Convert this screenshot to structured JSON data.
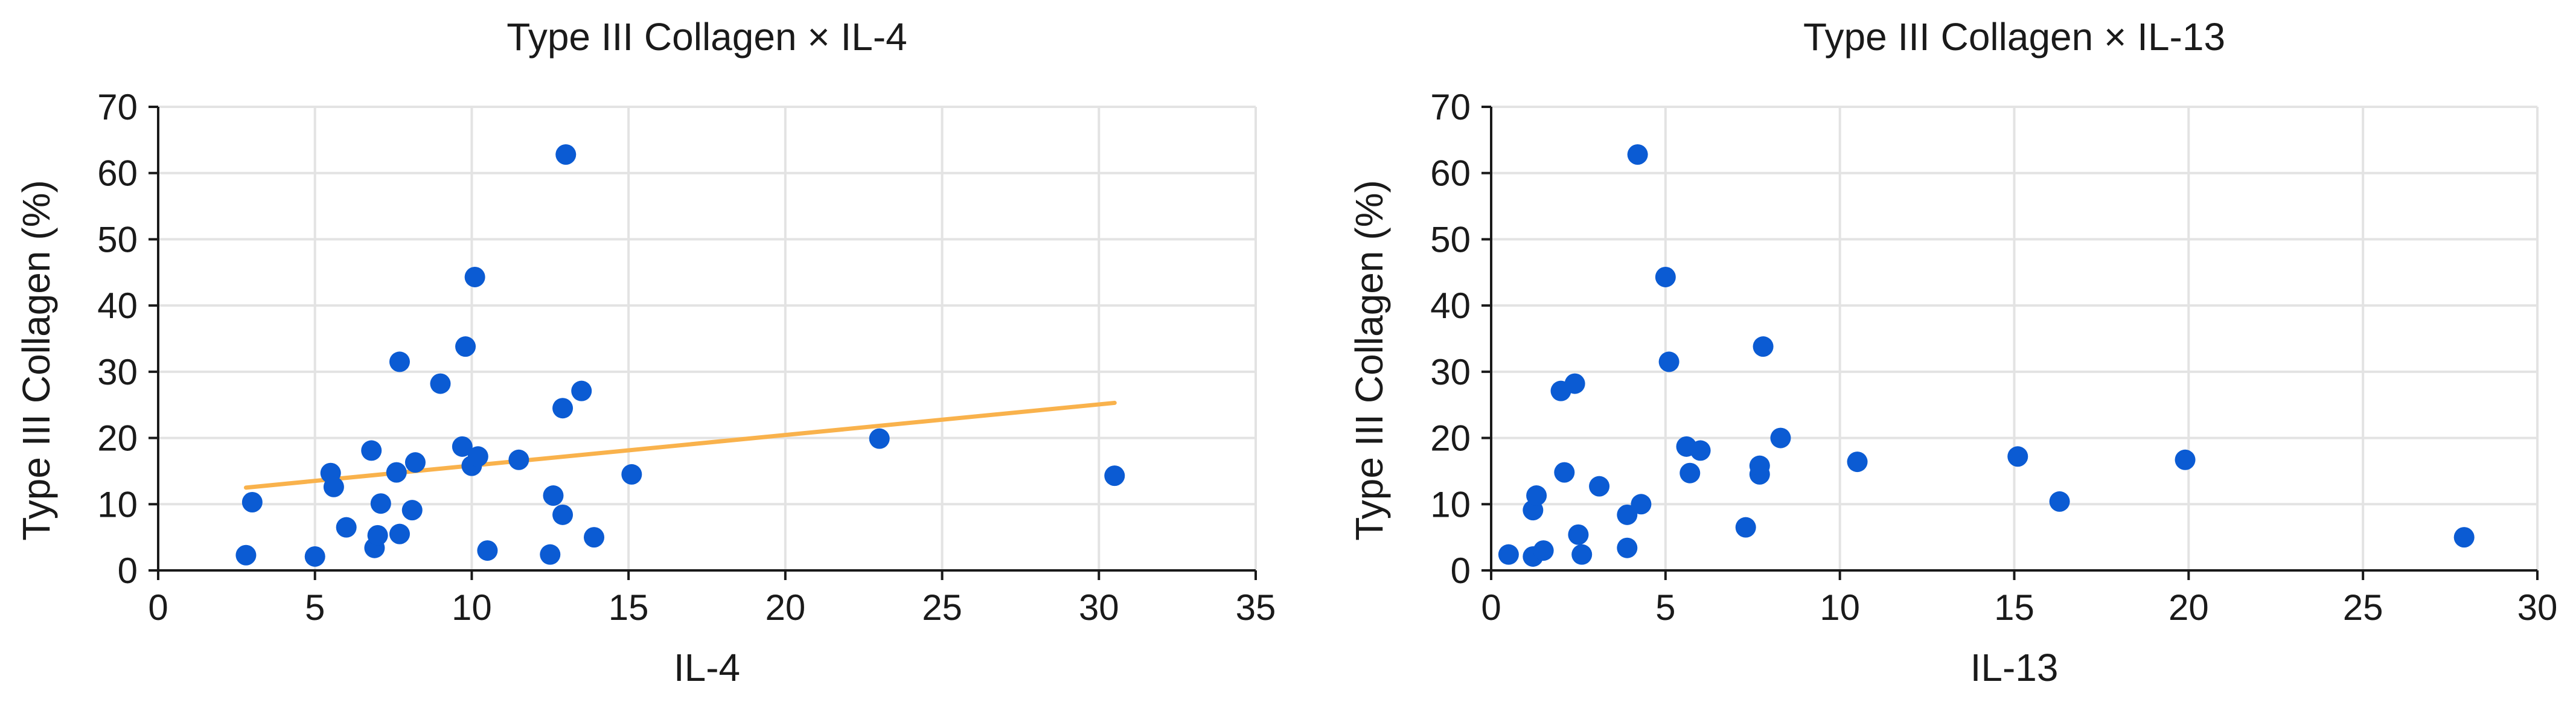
{
  "colors": {
    "point": "#0b5bd3",
    "trend": "#f9b24c",
    "grid": "#e3e3e3",
    "axis": "#1a1a1a"
  },
  "chart_data": [
    {
      "type": "scatter",
      "title": "Type III Collagen × IL-4",
      "xlabel": "IL-4",
      "ylabel": "Type III Collagen (%)",
      "xlim": [
        0,
        35
      ],
      "ylim": [
        0,
        70
      ],
      "xticks": [
        0,
        5,
        10,
        15,
        20,
        25,
        30,
        35
      ],
      "yticks": [
        0,
        10,
        20,
        30,
        40,
        50,
        60,
        70
      ],
      "grid": true,
      "trendline": {
        "x": [
          2.8,
          30.5
        ],
        "y": [
          12.5,
          25.3
        ]
      },
      "points": [
        {
          "x": 2.8,
          "y": 2.3
        },
        {
          "x": 3.0,
          "y": 10.3
        },
        {
          "x": 5.0,
          "y": 2.1
        },
        {
          "x": 5.5,
          "y": 14.7
        },
        {
          "x": 5.6,
          "y": 12.6
        },
        {
          "x": 6.0,
          "y": 6.5
        },
        {
          "x": 6.8,
          "y": 18.1
        },
        {
          "x": 6.9,
          "y": 3.4
        },
        {
          "x": 7.0,
          "y": 5.3
        },
        {
          "x": 7.1,
          "y": 10.1
        },
        {
          "x": 7.6,
          "y": 14.8
        },
        {
          "x": 7.7,
          "y": 31.5
        },
        {
          "x": 7.7,
          "y": 5.5
        },
        {
          "x": 8.1,
          "y": 9.1
        },
        {
          "x": 8.2,
          "y": 16.3
        },
        {
          "x": 9.0,
          "y": 28.2
        },
        {
          "x": 9.7,
          "y": 18.7
        },
        {
          "x": 9.8,
          "y": 33.8
        },
        {
          "x": 10.0,
          "y": 15.8
        },
        {
          "x": 10.1,
          "y": 44.3
        },
        {
          "x": 10.2,
          "y": 17.2
        },
        {
          "x": 10.5,
          "y": 3.0
        },
        {
          "x": 11.5,
          "y": 16.7
        },
        {
          "x": 12.5,
          "y": 2.4
        },
        {
          "x": 12.6,
          "y": 11.3
        },
        {
          "x": 12.9,
          "y": 8.4
        },
        {
          "x": 12.9,
          "y": 24.5
        },
        {
          "x": 13.0,
          "y": 62.8
        },
        {
          "x": 13.5,
          "y": 27.1
        },
        {
          "x": 13.9,
          "y": 5.0
        },
        {
          "x": 15.1,
          "y": 14.5
        },
        {
          "x": 23.0,
          "y": 19.9
        },
        {
          "x": 30.5,
          "y": 14.3
        }
      ]
    },
    {
      "type": "scatter",
      "title": "Type III Collagen × IL-13",
      "xlabel": "IL-13",
      "ylabel": "Type III Collagen (%)",
      "xlim": [
        0,
        30
      ],
      "ylim": [
        0,
        70
      ],
      "xticks": [
        0,
        5,
        10,
        15,
        20,
        25,
        30
      ],
      "yticks": [
        0,
        10,
        20,
        30,
        40,
        50,
        60,
        70
      ],
      "grid": true,
      "points": [
        {
          "x": 0.5,
          "y": 2.4
        },
        {
          "x": 1.2,
          "y": 9.1
        },
        {
          "x": 1.2,
          "y": 2.1
        },
        {
          "x": 1.3,
          "y": 11.3
        },
        {
          "x": 1.5,
          "y": 3.0
        },
        {
          "x": 2.0,
          "y": 27.1
        },
        {
          "x": 2.1,
          "y": 14.8
        },
        {
          "x": 2.4,
          "y": 28.2
        },
        {
          "x": 2.5,
          "y": 5.4
        },
        {
          "x": 2.6,
          "y": 2.4
        },
        {
          "x": 3.1,
          "y": 12.7
        },
        {
          "x": 3.9,
          "y": 8.4
        },
        {
          "x": 3.9,
          "y": 3.4
        },
        {
          "x": 4.2,
          "y": 62.8
        },
        {
          "x": 4.3,
          "y": 10.0
        },
        {
          "x": 5.0,
          "y": 44.3
        },
        {
          "x": 5.1,
          "y": 31.5
        },
        {
          "x": 5.6,
          "y": 18.7
        },
        {
          "x": 5.7,
          "y": 14.7
        },
        {
          "x": 6.0,
          "y": 18.1
        },
        {
          "x": 7.3,
          "y": 6.5
        },
        {
          "x": 7.7,
          "y": 14.5
        },
        {
          "x": 7.7,
          "y": 15.8
        },
        {
          "x": 7.8,
          "y": 33.8
        },
        {
          "x": 8.3,
          "y": 20.0
        },
        {
          "x": 10.5,
          "y": 16.4
        },
        {
          "x": 15.1,
          "y": 17.2
        },
        {
          "x": 16.3,
          "y": 10.4
        },
        {
          "x": 19.9,
          "y": 16.7
        },
        {
          "x": 27.9,
          "y": 5.0
        }
      ]
    }
  ]
}
